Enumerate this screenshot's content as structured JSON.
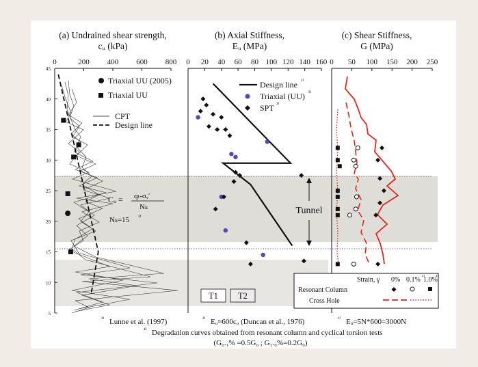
{
  "chart_data": [
    {
      "panel": "a",
      "type": "line",
      "title_line1": "(a) Undrained shear strength,",
      "title_line2": "cᵤ (kPa)",
      "x_ticks": [
        "0",
        "200",
        "400",
        "600",
        "800"
      ],
      "xlim": [
        0,
        800
      ],
      "ylim": [
        5,
        45
      ],
      "y_ticks": [
        "45",
        "40",
        "35",
        "30",
        "25",
        "20",
        "15",
        "10",
        "5"
      ],
      "legend": [
        {
          "label": "Triaxial UU (2005)",
          "marker": "circle"
        },
        {
          "label": "Triaxial UU",
          "marker": "square"
        },
        {
          "label": "CPT",
          "line": "solid-thin"
        },
        {
          "label": "Design line",
          "line": "dashed"
        }
      ],
      "equation": {
        "lhs": "Cᵤ =",
        "numerator": "qₜ-σᵥ'",
        "denominator": "Nₖ",
        "nk": "Nₖ=15",
        "nk_sup": "¹⁾"
      },
      "series": [
        {
          "name": "Triaxial UU (2005)",
          "points": [
            [
              90,
              21.3
            ]
          ]
        },
        {
          "name": "Triaxial UU",
          "points": [
            [
              60,
              36.5
            ],
            [
              130,
              30.5
            ],
            [
              165,
              32.5
            ],
            [
              90,
              24.5
            ],
            [
              110,
              15.0
            ]
          ]
        },
        {
          "name": "Design line",
          "points": [
            [
              25,
              44
            ],
            [
              300,
              15
            ],
            [
              250,
              8
            ]
          ]
        }
      ]
    },
    {
      "panel": "b",
      "type": "scatter",
      "title_line1": "(b) Axial Stiffness,",
      "title_line2": "Eᵤ (MPa)",
      "x_ticks": [
        "0",
        "20",
        "40",
        "60",
        "80",
        "100",
        "120",
        "140",
        "160"
      ],
      "xlim": [
        0,
        160
      ],
      "legend": [
        {
          "label": "Design line",
          "sup": "¹⁾",
          "line": "solid-thick"
        },
        {
          "label": "Triaxial (UU)",
          "sup": "²⁾",
          "marker": "circle-blue"
        },
        {
          "label": "SPT",
          "sup": "³⁾",
          "marker": "diamond"
        }
      ],
      "design_line": [
        [
          30,
          42.5
        ],
        [
          123,
          29.5
        ],
        [
          42,
          29.5
        ],
        [
          75,
          26.0
        ],
        [
          125,
          16.0
        ]
      ],
      "series": [
        {
          "name": "Triaxial (UU)",
          "points": [
            [
              12,
              37
            ],
            [
              52,
              31
            ],
            [
              57,
              30.5
            ],
            [
              95,
              33
            ],
            [
              40,
              24
            ],
            [
              45,
              18.5
            ],
            [
              90,
              14.5
            ]
          ]
        },
        {
          "name": "SPT",
          "points": [
            [
              18,
              40
            ],
            [
              22,
              39
            ],
            [
              15,
              38
            ],
            [
              30,
              37.5
            ],
            [
              40,
              37
            ],
            [
              25,
              35.5
            ],
            [
              35,
              35
            ],
            [
              45,
              35
            ],
            [
              50,
              34
            ],
            [
              43,
              24
            ],
            [
              33,
              22
            ],
            [
              55,
              26.5
            ],
            [
              57,
              28
            ],
            [
              62,
              27.5
            ],
            [
              70,
              16.5
            ],
            [
              75,
              13
            ],
            [
              136,
              27.5
            ],
            [
              139,
              13.5
            ]
          ]
        }
      ],
      "texts": {
        "tunnel": "Tunnel",
        "t1": "T1",
        "t2": "T2"
      }
    },
    {
      "panel": "c",
      "type": "line",
      "title_line1": "(c) Shear Stiffness,",
      "title_line2": "G (MPa)",
      "x_ticks": [
        "0",
        "50",
        "100",
        "150",
        "200",
        "250"
      ],
      "xlim": [
        0,
        250
      ],
      "series": [
        {
          "name": "0%",
          "points": [
            [
              125,
              32
            ],
            [
              115,
              30
            ],
            [
              120,
              27
            ],
            [
              130,
              25
            ],
            [
              120,
              23
            ],
            [
              110,
              21
            ],
            [
              115,
              13
            ]
          ]
        },
        {
          "name": "0.1%",
          "points": [
            [
              65,
              32
            ],
            [
              55,
              30
            ],
            [
              60,
              29
            ],
            [
              62,
              24
            ],
            [
              60,
              22
            ],
            [
              45,
              21
            ],
            [
              55,
              13
            ]
          ]
        },
        {
          "name": "1.0%",
          "points": [
            [
              15,
              32
            ],
            [
              15,
              30
            ],
            [
              20,
              29
            ],
            [
              15,
              25
            ],
            [
              15,
              24
            ],
            [
              15,
              22
            ],
            [
              15,
              21
            ],
            [
              15,
              13
            ]
          ]
        }
      ],
      "legend_box": {
        "strain_label": "Strain, γ",
        "col1": "0%",
        "col2": "0.1%",
        "col2_sup": "⁴⁾",
        "col3": "1.0%",
        "col3_sup": "⁴⁾",
        "row1": "Resonant Column",
        "row2": "Cross Hole"
      }
    }
  ],
  "footnotes": {
    "f1_sup": "¹⁾",
    "f1": "Lunne et al. (1997)",
    "f2_sup": "²⁾",
    "f2": "Eᵤ≈600cᵤ (Duncan et al., 1976)",
    "f3_sup": "³⁾",
    "f3": "Eᵤ=5N*600=3000N",
    "f4_sup": "⁴⁾",
    "f4": "Degradation curves obtained from resonant column and cyclical torsion tests",
    "f5": "(G₀.₁% =0.5G₀  ;  G₁.₀%=0.2G₀)"
  },
  "colors": {
    "background": "#f1ece6",
    "triaxial_blue": "#4a4ab8",
    "cross_hole_red": "#e0261e",
    "band_grey": "#d9d6d2"
  }
}
